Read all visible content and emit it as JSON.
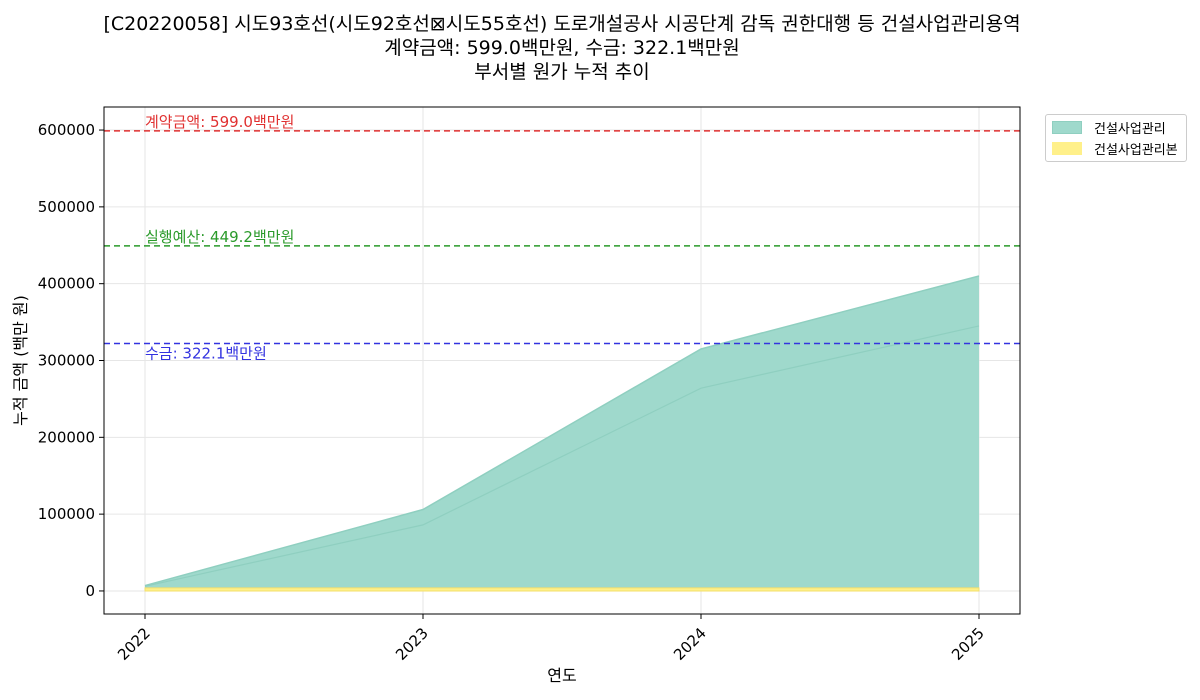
{
  "title": {
    "line1": "[C20220058] 시도93호선(시도92호선⊠시도55호선) 도로개설공사 시공단계 감독 권한대행 등 건설사업관리용역",
    "line2": "계약금액: 599.0백만원, 수금: 322.1백만원",
    "line3": "부서별 원가 누적 추이"
  },
  "colors": {
    "area1": "#9fd9cc",
    "area1_line": "#8fcfc0",
    "area2": "#fff08a",
    "area2_line": "#f3df6b",
    "contract_line": "#e03030",
    "budget_line": "#2a9a2a",
    "received_line": "#3333e0"
  },
  "chart_data": {
    "type": "area",
    "title": "부서별 원가 누적 추이",
    "xlabel": "연도",
    "ylabel": "누적 금액 (백만 원)",
    "x": [
      "2022",
      "2023",
      "2024",
      "2025"
    ],
    "ylim": [
      -30000,
      630000
    ],
    "yticks": [
      0,
      100000,
      200000,
      300000,
      400000,
      500000,
      600000
    ],
    "ytick_labels": [
      "0",
      "100000",
      "200000",
      "300000",
      "400000",
      "500000",
      "600000"
    ],
    "series": [
      {
        "name": "건설사업관리",
        "values": [
          7000,
          106000,
          315000,
          410000
        ],
        "inner_line": [
          6000,
          86000,
          264000,
          345000
        ]
      },
      {
        "name": "건설사업관리본",
        "values": [
          4000,
          4000,
          4000,
          4000
        ]
      }
    ],
    "reference_lines": [
      {
        "label": "계약금액: 599.0백만원",
        "value": 599000,
        "color": "#e03030"
      },
      {
        "label": "실행예산: 449.2백만원",
        "value": 449200,
        "color": "#2a9a2a"
      },
      {
        "label": "수금: 322.1백만원",
        "value": 322100,
        "color": "#3333e0"
      }
    ],
    "grid": true,
    "legend_position": "outside-top-right"
  }
}
